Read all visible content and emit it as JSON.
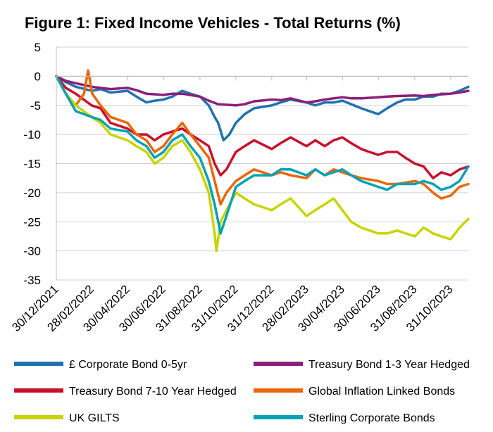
{
  "chart_data": {
    "type": "line",
    "title": "Figure 1: Fixed Income Vehicles - Total Returns (%)",
    "xlabel": "",
    "ylabel": "",
    "ylim": [
      -35,
      5
    ],
    "y_ticks": [
      "5",
      "0",
      "-5",
      "-10",
      "-15",
      "-20",
      "-25",
      "-30",
      "-35"
    ],
    "x_range": [
      "2021-12-30",
      "2023-11-30"
    ],
    "x_ticks": [
      "30/12/2021",
      "28/02/2022",
      "30/04/2022",
      "30/06/2022",
      "31/08/2022",
      "31/10/2022",
      "31/12/2022",
      "28/02/2023",
      "30/04/2023",
      "30/06/2023",
      "31/08/2023",
      "31/10/2023"
    ],
    "grid": "horizontal",
    "legend": "bottom",
    "series": [
      {
        "name": "£ Corporate Bond 0-5yr",
        "color": "#1f72b0",
        "x": [
          "2021-12-30",
          "2022-01-15",
          "2022-02-01",
          "2022-02-28",
          "2022-03-15",
          "2022-04-01",
          "2022-04-30",
          "2022-05-15",
          "2022-06-01",
          "2022-06-15",
          "2022-06-30",
          "2022-07-15",
          "2022-08-01",
          "2022-08-15",
          "2022-08-31",
          "2022-09-15",
          "2022-09-25",
          "2022-10-01",
          "2022-10-10",
          "2022-10-20",
          "2022-10-31",
          "2022-11-15",
          "2022-12-01",
          "2022-12-31",
          "2023-01-15",
          "2023-02-01",
          "2023-02-28",
          "2023-03-15",
          "2023-03-31",
          "2023-04-15",
          "2023-04-30",
          "2023-05-15",
          "2023-06-01",
          "2023-06-15",
          "2023-06-30",
          "2023-07-15",
          "2023-08-01",
          "2023-08-15",
          "2023-08-31",
          "2023-09-15",
          "2023-10-01",
          "2023-10-15",
          "2023-10-31",
          "2023-11-15",
          "2023-11-30"
        ],
        "values": [
          0,
          -1,
          -1.8,
          -2.5,
          -2.2,
          -2.8,
          -2.5,
          -3.5,
          -4.5,
          -4.2,
          -4,
          -3.5,
          -2.5,
          -3,
          -3.5,
          -5,
          -7,
          -8,
          -11,
          -10,
          -8,
          -6.5,
          -5.5,
          -5,
          -4.5,
          -4,
          -4.5,
          -5,
          -4.5,
          -4.5,
          -4.2,
          -4.8,
          -5.5,
          -6,
          -6.5,
          -5.5,
          -4.5,
          -4,
          -4,
          -3.5,
          -3.5,
          -3,
          -3,
          -2.5,
          -1.8
        ]
      },
      {
        "name": "Treasury Bond 1-3 Year Hedged",
        "color": "#8b1f7a",
        "x": [
          "2021-12-30",
          "2022-01-15",
          "2022-02-01",
          "2022-02-28",
          "2022-03-15",
          "2022-04-01",
          "2022-04-30",
          "2022-05-15",
          "2022-06-01",
          "2022-06-30",
          "2022-07-15",
          "2022-08-01",
          "2022-08-31",
          "2022-09-15",
          "2022-10-01",
          "2022-10-31",
          "2022-11-15",
          "2022-12-01",
          "2022-12-31",
          "2023-01-15",
          "2023-02-01",
          "2023-02-28",
          "2023-03-15",
          "2023-03-31",
          "2023-04-15",
          "2023-04-30",
          "2023-05-15",
          "2023-06-01",
          "2023-06-30",
          "2023-07-15",
          "2023-08-01",
          "2023-08-31",
          "2023-09-15",
          "2023-10-01",
          "2023-10-31",
          "2023-11-15",
          "2023-11-30"
        ],
        "values": [
          0,
          -0.8,
          -1.2,
          -1.8,
          -2,
          -2.2,
          -2,
          -2.4,
          -3,
          -3.2,
          -3,
          -3,
          -3.5,
          -4.2,
          -4.8,
          -5,
          -4.8,
          -4.3,
          -4,
          -4.1,
          -3.8,
          -4.5,
          -4.3,
          -4,
          -3.8,
          -3.6,
          -3.8,
          -3.8,
          -3.6,
          -3.5,
          -3.4,
          -3.3,
          -3.4,
          -3.2,
          -3,
          -2.8,
          -2.5
        ]
      },
      {
        "name": "Treasury Bond 7-10 Year Hedged",
        "color": "#c8102e",
        "x": [
          "2021-12-30",
          "2022-01-15",
          "2022-02-01",
          "2022-02-28",
          "2022-03-15",
          "2022-04-01",
          "2022-04-30",
          "2022-05-15",
          "2022-06-01",
          "2022-06-15",
          "2022-06-30",
          "2022-07-15",
          "2022-08-01",
          "2022-08-15",
          "2022-08-31",
          "2022-09-15",
          "2022-09-25",
          "2022-10-05",
          "2022-10-15",
          "2022-10-31",
          "2022-11-15",
          "2022-12-01",
          "2022-12-31",
          "2023-01-15",
          "2023-02-01",
          "2023-02-28",
          "2023-03-15",
          "2023-03-31",
          "2023-04-15",
          "2023-04-30",
          "2023-05-15",
          "2023-06-01",
          "2023-06-15",
          "2023-06-30",
          "2023-07-15",
          "2023-08-01",
          "2023-08-15",
          "2023-08-31",
          "2023-09-15",
          "2023-10-01",
          "2023-10-15",
          "2023-10-31",
          "2023-11-15",
          "2023-11-30"
        ],
        "values": [
          0,
          -2,
          -3,
          -5,
          -5.5,
          -8,
          -9,
          -10,
          -10,
          -11,
          -10,
          -9.5,
          -9,
          -10,
          -11,
          -12,
          -15,
          -17,
          -16,
          -13,
          -12,
          -11,
          -12.5,
          -11.5,
          -10.5,
          -12,
          -11,
          -12,
          -11,
          -10.5,
          -11.5,
          -12.5,
          -13,
          -13.5,
          -13,
          -13,
          -14,
          -15,
          -15.5,
          -17.5,
          -16.5,
          -17,
          -16,
          -15.5
        ]
      },
      {
        "name": "Global Inflation Linked Bonds",
        "color": "#ec6608",
        "x": [
          "2021-12-30",
          "2022-01-15",
          "2022-02-01",
          "2022-02-15",
          "2022-02-22",
          "2022-03-01",
          "2022-03-15",
          "2022-04-01",
          "2022-04-30",
          "2022-05-15",
          "2022-06-01",
          "2022-06-15",
          "2022-06-30",
          "2022-07-15",
          "2022-08-01",
          "2022-08-15",
          "2022-08-31",
          "2022-09-15",
          "2022-09-25",
          "2022-10-05",
          "2022-10-15",
          "2022-10-31",
          "2022-11-15",
          "2022-12-01",
          "2022-12-31",
          "2023-01-15",
          "2023-02-01",
          "2023-02-28",
          "2023-03-15",
          "2023-03-31",
          "2023-04-15",
          "2023-04-30",
          "2023-05-15",
          "2023-06-01",
          "2023-06-30",
          "2023-07-15",
          "2023-08-01",
          "2023-08-31",
          "2023-09-15",
          "2023-10-01",
          "2023-10-15",
          "2023-10-31",
          "2023-11-15",
          "2023-11-30"
        ],
        "values": [
          0,
          -3,
          -5,
          -3,
          1,
          -3,
          -5,
          -7,
          -8,
          -10,
          -11,
          -13,
          -12,
          -10,
          -8,
          -10,
          -12,
          -14,
          -18,
          -22,
          -20,
          -18,
          -17,
          -16,
          -17,
          -16.5,
          -17,
          -17.5,
          -16,
          -17,
          -16,
          -16.5,
          -17,
          -17.5,
          -18,
          -18.5,
          -18.5,
          -18,
          -18.5,
          -20,
          -21,
          -20.5,
          -19,
          -18.5
        ]
      },
      {
        "name": "UK GILTS",
        "color": "#c8d400",
        "x": [
          "2021-12-30",
          "2022-01-15",
          "2022-02-01",
          "2022-02-28",
          "2022-03-15",
          "2022-04-01",
          "2022-04-30",
          "2022-05-15",
          "2022-06-01",
          "2022-06-15",
          "2022-06-30",
          "2022-07-15",
          "2022-08-01",
          "2022-08-15",
          "2022-08-31",
          "2022-09-15",
          "2022-09-25",
          "2022-09-28",
          "2022-10-05",
          "2022-10-15",
          "2022-10-31",
          "2022-11-15",
          "2022-12-01",
          "2022-12-31",
          "2023-01-15",
          "2023-02-01",
          "2023-02-28",
          "2023-03-15",
          "2023-03-31",
          "2023-04-15",
          "2023-04-30",
          "2023-05-15",
          "2023-06-01",
          "2023-06-30",
          "2023-07-15",
          "2023-08-01",
          "2023-08-31",
          "2023-09-15",
          "2023-10-01",
          "2023-10-15",
          "2023-10-31",
          "2023-11-15",
          "2023-11-30"
        ],
        "values": [
          0,
          -3,
          -5,
          -7,
          -8,
          -10,
          -11,
          -12,
          -13,
          -15,
          -14,
          -12,
          -11,
          -13,
          -16,
          -20,
          -27,
          -30,
          -25,
          -23,
          -20,
          -21,
          -22,
          -23,
          -22,
          -21,
          -24,
          -23,
          -22,
          -21,
          -23,
          -25,
          -26,
          -27,
          -27,
          -26.5,
          -27.5,
          -26,
          -27,
          -27.5,
          -28,
          -26,
          -24.5
        ]
      },
      {
        "name": "Sterling Corporate Bonds",
        "color": "#00a3b4",
        "x": [
          "2021-12-30",
          "2022-01-15",
          "2022-02-01",
          "2022-02-28",
          "2022-03-15",
          "2022-04-01",
          "2022-04-30",
          "2022-05-15",
          "2022-06-01",
          "2022-06-15",
          "2022-06-30",
          "2022-07-15",
          "2022-08-01",
          "2022-08-15",
          "2022-08-31",
          "2022-09-15",
          "2022-09-25",
          "2022-10-05",
          "2022-10-15",
          "2022-10-31",
          "2022-11-15",
          "2022-12-01",
          "2022-12-31",
          "2023-01-15",
          "2023-02-01",
          "2023-02-28",
          "2023-03-15",
          "2023-03-31",
          "2023-04-15",
          "2023-04-30",
          "2023-05-15",
          "2023-06-01",
          "2023-06-30",
          "2023-07-15",
          "2023-08-01",
          "2023-08-31",
          "2023-09-15",
          "2023-10-01",
          "2023-10-15",
          "2023-10-31",
          "2023-11-15",
          "2023-11-30"
        ],
        "values": [
          0,
          -3,
          -6,
          -7,
          -7.5,
          -9,
          -9.5,
          -11,
          -12,
          -14,
          -13,
          -11,
          -10,
          -12,
          -14,
          -18,
          -22,
          -27,
          -24,
          -19,
          -18,
          -17,
          -17,
          -16,
          -16,
          -17,
          -16,
          -17,
          -16.5,
          -16,
          -17,
          -18,
          -19,
          -19.5,
          -18.5,
          -18.5,
          -18,
          -18.5,
          -19.5,
          -19,
          -18,
          -15.5
        ]
      }
    ]
  }
}
